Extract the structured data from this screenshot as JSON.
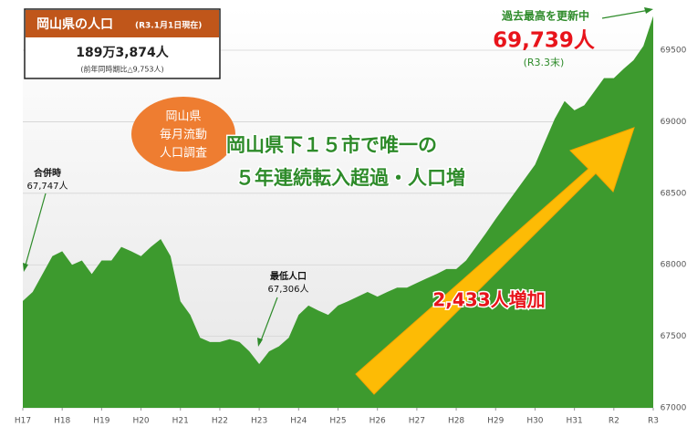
{
  "chart_data": {
    "type": "area",
    "series": [
      {
        "color": "#3d9a2e",
        "x": [
          0,
          0.25,
          0.5,
          0.75,
          1,
          1.25,
          1.5,
          1.75,
          2,
          2.25,
          2.5,
          2.75,
          3,
          3.25,
          3.5,
          3.75,
          4,
          4.25,
          4.5,
          4.75,
          5,
          5.25,
          5.5,
          5.75,
          6,
          6.25,
          6.5,
          6.75,
          7,
          7.25,
          7.5,
          7.75,
          8,
          8.25,
          8.5,
          8.75,
          9,
          9.25,
          9.5,
          9.75,
          10,
          10.25,
          10.5,
          10.75,
          11,
          11.25,
          11.5,
          11.75,
          12,
          12.25,
          12.5,
          12.75,
          13,
          13.25,
          13.5,
          13.75,
          14,
          14.25,
          14.5,
          14.75,
          15,
          15.25,
          15.5,
          15.75,
          16
        ],
        "values": [
          67747,
          67810,
          67935,
          68060,
          68095,
          68000,
          68030,
          67935,
          68030,
          68030,
          68125,
          68095,
          68060,
          68125,
          68180,
          68060,
          67745,
          67650,
          67490,
          67460,
          67460,
          67480,
          67460,
          67395,
          67306,
          67395,
          67430,
          67490,
          67650,
          67715,
          67680,
          67650,
          67715,
          67745,
          67777,
          67810,
          67777,
          67810,
          67840,
          67840,
          67873,
          67905,
          67935,
          67970,
          67970,
          68030,
          68125,
          68220,
          68320,
          68415,
          68510,
          68605,
          68700,
          68860,
          69020,
          69145,
          69080,
          69115,
          69210,
          69305,
          69305,
          69370,
          69430,
          69530,
          69739
        ]
      }
    ],
    "xlim": [
      0,
      16
    ],
    "xticks": [
      {
        "value": 0,
        "label": "H17"
      },
      {
        "value": 1,
        "label": "H18"
      },
      {
        "value": 2,
        "label": "H19"
      },
      {
        "value": 3,
        "label": "H20"
      },
      {
        "value": 4,
        "label": "H21"
      },
      {
        "value": 5,
        "label": "H22"
      },
      {
        "value": 6,
        "label": "H23"
      },
      {
        "value": 7,
        "label": "H24"
      },
      {
        "value": 8,
        "label": "H25"
      },
      {
        "value": 9,
        "label": "H26"
      },
      {
        "value": 10,
        "label": "H27"
      },
      {
        "value": 11,
        "label": "H28"
      },
      {
        "value": 12,
        "label": "H29"
      },
      {
        "value": 13,
        "label": "H30"
      },
      {
        "value": 14,
        "label": "H31"
      },
      {
        "value": 15,
        "label": "R2"
      },
      {
        "value": 16,
        "label": "R3"
      }
    ],
    "ylim": [
      67000,
      69800
    ],
    "yticks": [
      67000,
      67500,
      68000,
      68500,
      69000,
      69500
    ],
    "grid": true,
    "info_box": {
      "title": "岡山県の人口",
      "date": "(R3.1月1日現在)",
      "total": "189万3,874人",
      "change": "(前年同時期比△9,753人)"
    },
    "badge": [
      "岡山県",
      "毎月流動",
      "人口調査"
    ],
    "headline": [
      "岡山県下１５市で唯一の",
      "５年連続転入超過・人口増"
    ],
    "increase": "2,433人増加",
    "record": {
      "label": "過去最高を更新中",
      "value": "69,739人",
      "date": "(R3.3末)"
    },
    "start_note": [
      "合併時",
      "67,747人"
    ],
    "low_note": [
      "最低人口",
      "67,306人"
    ]
  }
}
